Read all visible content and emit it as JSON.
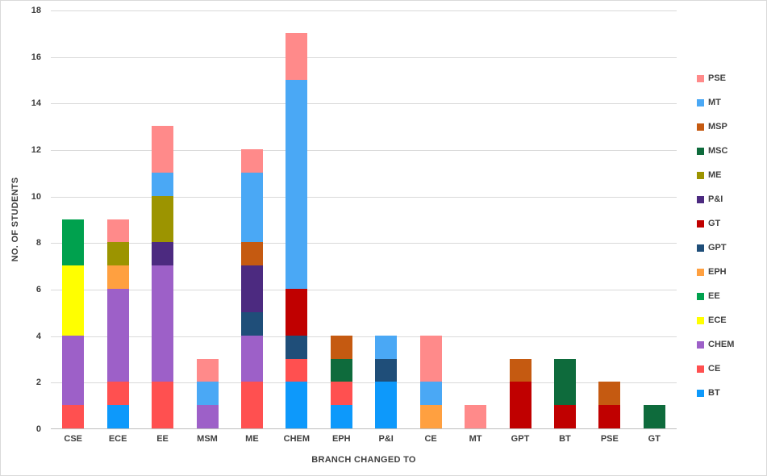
{
  "chart_data": {
    "type": "bar",
    "variant": "stacked",
    "title": "",
    "xlabel": "BRANCH CHANGED TO",
    "ylabel": "NO. OF STUDENTS",
    "ylim": [
      0,
      18
    ],
    "ytick_step": 2,
    "grid": "on",
    "legend_position": "right",
    "categories": [
      "CSE",
      "ECE",
      "EE",
      "MSM",
      "ME",
      "CHEM",
      "EPH",
      "P&I",
      "CE",
      "MT",
      "GPT",
      "BT",
      "PSE",
      "GT"
    ],
    "series": [
      {
        "name": "BT",
        "color": "#0D99FB",
        "values": [
          0,
          1,
          0,
          0,
          0,
          2,
          1,
          2,
          0,
          0,
          0,
          0,
          0,
          0
        ]
      },
      {
        "name": "CE",
        "color": "#FF5050",
        "values": [
          1,
          1,
          2,
          0,
          2,
          1,
          1,
          0,
          0,
          0,
          0,
          0,
          0,
          0
        ]
      },
      {
        "name": "CHEM",
        "color": "#9D60C8",
        "values": [
          3,
          4,
          5,
          1,
          2,
          0,
          0,
          0,
          0,
          0,
          0,
          0,
          0,
          0
        ]
      },
      {
        "name": "ECE",
        "color": "#FFFF00",
        "values": [
          3,
          0,
          0,
          0,
          0,
          0,
          0,
          0,
          0,
          0,
          0,
          0,
          0,
          0
        ]
      },
      {
        "name": "EE",
        "color": "#00A14E",
        "values": [
          2,
          0,
          0,
          0,
          0,
          0,
          0,
          0,
          0,
          0,
          0,
          0,
          0,
          0
        ]
      },
      {
        "name": "EPH",
        "color": "#FFA040",
        "values": [
          0,
          1,
          0,
          0,
          0,
          0,
          0,
          0,
          1,
          0,
          0,
          0,
          0,
          0
        ]
      },
      {
        "name": "GPT",
        "color": "#1F4E79",
        "values": [
          0,
          0,
          0,
          0,
          1,
          1,
          0,
          1,
          0,
          0,
          0,
          0,
          0,
          0
        ]
      },
      {
        "name": "GT",
        "color": "#C00000",
        "values": [
          0,
          0,
          0,
          0,
          0,
          2,
          0,
          0,
          0,
          0,
          2,
          1,
          1,
          0
        ]
      },
      {
        "name": "P&I",
        "color": "#4C2A80",
        "values": [
          0,
          0,
          1,
          0,
          2,
          0,
          0,
          0,
          0,
          0,
          0,
          0,
          0,
          0
        ]
      },
      {
        "name": "ME",
        "color": "#9C9400",
        "values": [
          0,
          1,
          2,
          0,
          0,
          0,
          0,
          0,
          0,
          0,
          0,
          0,
          0,
          0
        ]
      },
      {
        "name": "MSC",
        "color": "#0E6B3C",
        "values": [
          0,
          0,
          0,
          0,
          0,
          0,
          1,
          0,
          0,
          0,
          0,
          2,
          0,
          1
        ]
      },
      {
        "name": "MSP",
        "color": "#C55A11",
        "values": [
          0,
          0,
          0,
          0,
          1,
          0,
          1,
          0,
          0,
          0,
          1,
          0,
          1,
          0
        ]
      },
      {
        "name": "MT",
        "color": "#4AA8F5",
        "values": [
          0,
          0,
          1,
          1,
          3,
          9,
          0,
          1,
          1,
          0,
          0,
          0,
          0,
          0
        ]
      },
      {
        "name": "PSE",
        "color": "#FF8A8A",
        "values": [
          0,
          1,
          2,
          1,
          1,
          2,
          0,
          0,
          2,
          1,
          0,
          0,
          0,
          0
        ]
      }
    ],
    "legend_order": [
      "PSE",
      "MT",
      "MSP",
      "MSC",
      "ME",
      "P&I",
      "GT",
      "GPT",
      "EPH",
      "EE",
      "ECE",
      "CHEM",
      "CE",
      "BT"
    ],
    "category_totals": {
      "CSE": 9,
      "ECE": 9,
      "EE": 13,
      "MSM": 3,
      "ME": 12,
      "CHEM": 17,
      "EPH": 4,
      "P&I": 4,
      "CE": 4,
      "MT": 1,
      "GPT": 3,
      "BT": 3,
      "PSE": 2,
      "GT": 1
    },
    "appearance": {
      "background": "#FFFFFF",
      "frame_border": "#D9D9D9",
      "gridline_color": "#D9D9D9",
      "axis_line_color": "#BFBFBF",
      "text_color": "#404040"
    }
  }
}
